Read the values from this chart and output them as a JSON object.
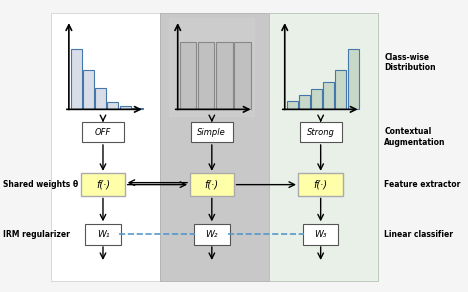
{
  "bg_color": "#f5f5f5",
  "panel1_bg": "#ffffff",
  "panel2_bg": "#c8c8c8",
  "panel3_bg": "#e8f0e8",
  "right_labels": [
    "Class-wise\nDistribution",
    "Contextual\nAugmentation",
    "Feature extractor",
    "Linear classifier"
  ],
  "left_labels": [
    "Shared weights θ",
    "IRM regularizer"
  ],
  "aug_labels": [
    "OFF",
    "Simple",
    "Strong"
  ],
  "box1_text": "f(·)",
  "box2_text": "f(·)",
  "box3_text": "f(·)",
  "w1_text": "W₁",
  "w2_text": "W₂",
  "w3_text": "W₃",
  "arrow_color": "#222222",
  "dashed_color": "#5599cc",
  "yellow_fill": "#ffffaa",
  "yellow_border": "#cccc00",
  "hist1_bars": [
    0.85,
    0.55,
    0.3,
    0.1,
    0.04,
    0.02
  ],
  "hist2_bars": [
    0.95,
    0.95,
    0.95,
    0.95
  ],
  "hist3_bars": [
    0.12,
    0.2,
    0.28,
    0.38,
    0.55,
    0.85
  ],
  "hist_bar_color": "#ccddee",
  "hist_line_color": "#4477aa",
  "figure_width": 4.68,
  "figure_height": 2.92
}
